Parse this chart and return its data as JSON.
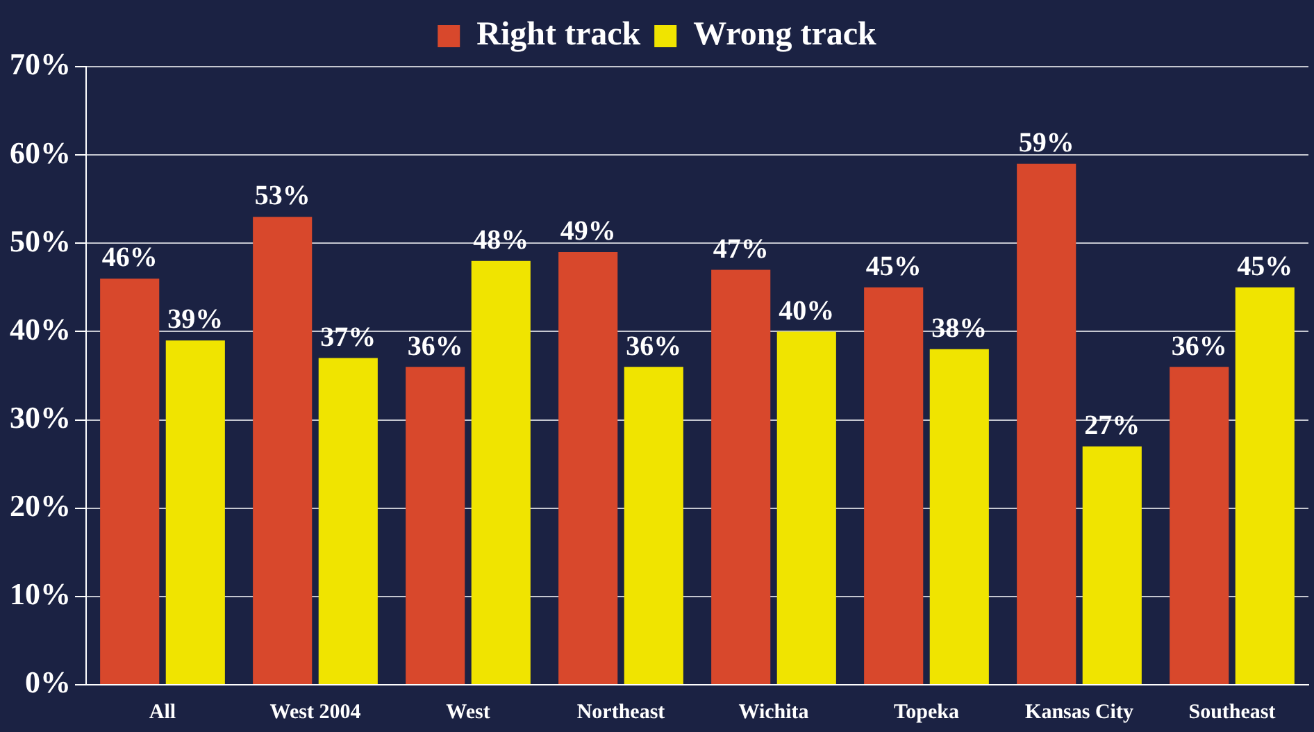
{
  "chart_data": {
    "type": "bar",
    "categories": [
      "All",
      "West 2004",
      "West",
      "Northeast",
      "Wichita",
      "Topeka",
      "Kansas City",
      "Southeast"
    ],
    "series": [
      {
        "name": "Right track",
        "color": "#d8482c",
        "values": [
          46,
          53,
          36,
          49,
          47,
          45,
          59,
          36
        ],
        "value_labels": [
          "46%",
          "53%",
          "36%",
          "49%",
          "47%",
          "45%",
          "59%",
          "36%"
        ]
      },
      {
        "name": "Wrong track",
        "color": "#f0e400",
        "values": [
          39,
          37,
          48,
          36,
          40,
          38,
          27,
          45
        ],
        "value_labels": [
          "39%",
          "37%",
          "48%",
          "36%",
          "40%",
          "38%",
          "27%",
          "45%"
        ]
      }
    ],
    "ylim": [
      0,
      70
    ],
    "yticks": [
      {
        "value": 0,
        "label": "0%"
      },
      {
        "value": 10,
        "label": "10%"
      },
      {
        "value": 20,
        "label": "20%"
      },
      {
        "value": 30,
        "label": "30%"
      },
      {
        "value": 40,
        "label": "40%"
      },
      {
        "value": 50,
        "label": "50%"
      },
      {
        "value": 60,
        "label": "60%"
      },
      {
        "value": 70,
        "label": "70%"
      }
    ],
    "grid": "y",
    "legend": "top"
  }
}
